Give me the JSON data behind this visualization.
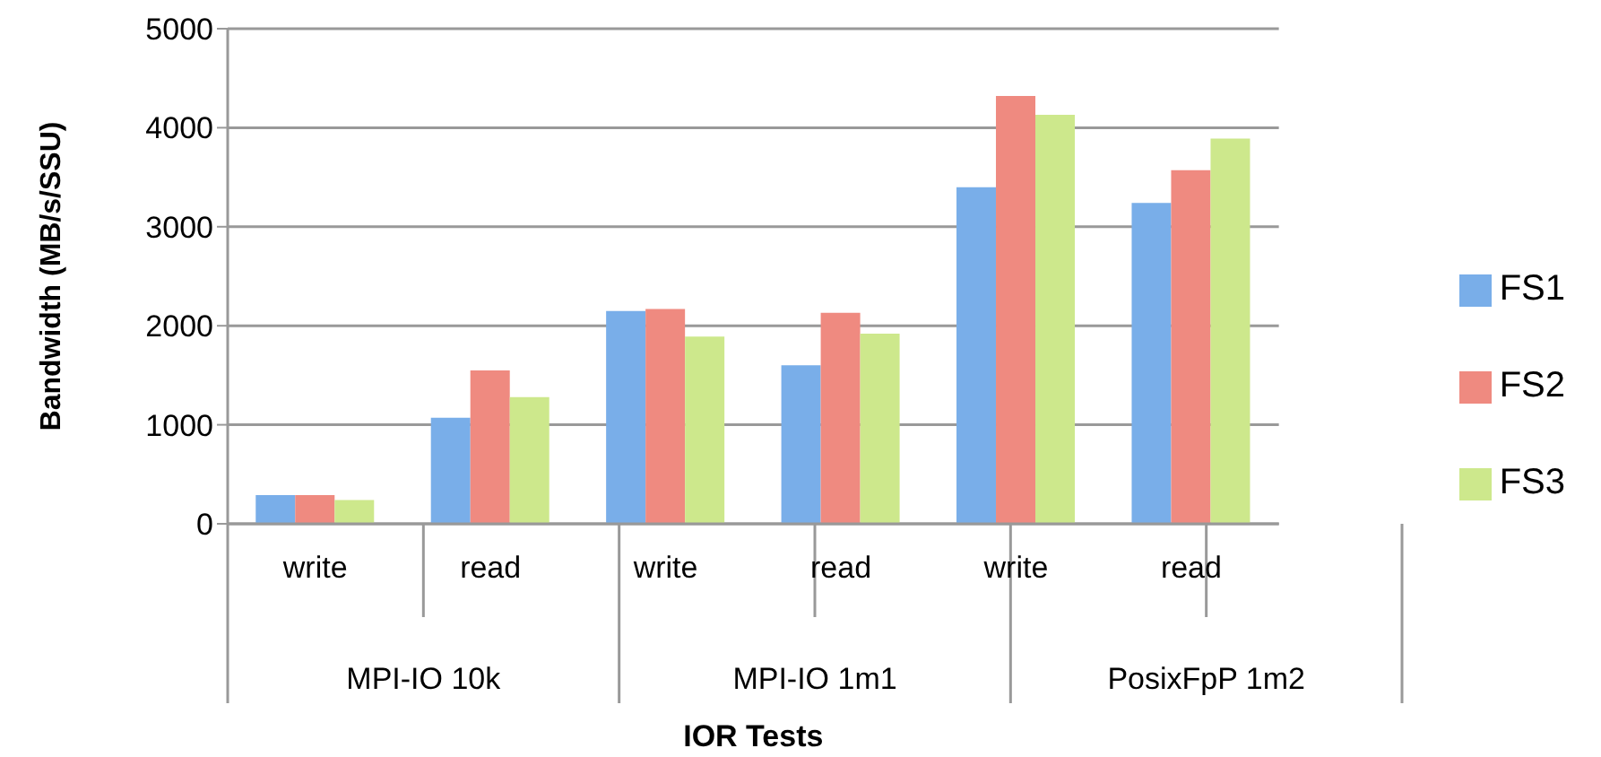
{
  "chart_data": {
    "type": "bar",
    "xlabel": "IOR Tests",
    "ylabel": "Bandwidth (MB/s/SSU)",
    "categories": [
      "write",
      "read",
      "write",
      "read",
      "write",
      "read"
    ],
    "annotations": [
      "MPI-IO 10k",
      "MPI-IO 1m1",
      "PosixFpP 1m2"
    ],
    "series": [
      {
        "name": "FS1",
        "color": "#79aee9",
        "values": [
          290,
          1070,
          2150,
          1600,
          3400,
          3240
        ]
      },
      {
        "name": "FS2",
        "color": "#ef8a80",
        "values": [
          290,
          1550,
          2170,
          2130,
          4320,
          3570
        ]
      },
      {
        "name": "FS3",
        "color": "#cde88c",
        "values": [
          240,
          1280,
          1890,
          1920,
          4130,
          3890
        ]
      }
    ],
    "ylim": [
      0,
      5000
    ],
    "yticks": [
      0,
      1000,
      2000,
      3000,
      4000,
      5000
    ],
    "grid": "y",
    "legend": "right"
  }
}
